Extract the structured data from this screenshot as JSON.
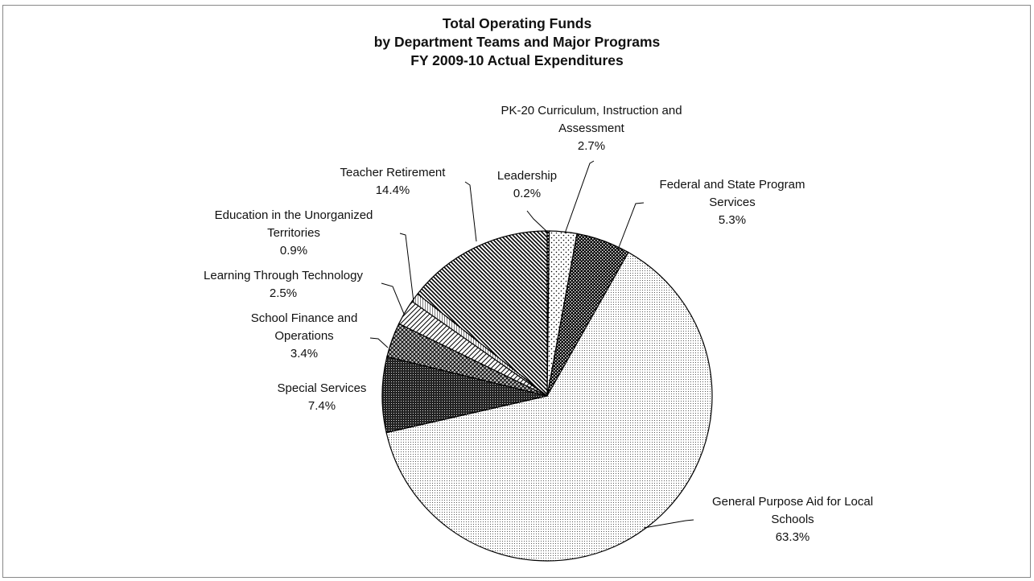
{
  "chart_data": {
    "type": "pie",
    "title": [
      "Total Operating Funds",
      "by Department Teams and Major Programs",
      "FY 2009-10 Actual Expenditures"
    ],
    "categories": [
      "Leadership",
      "PK-20 Curriculum, Instruction and Assessment",
      "Federal and State Program Services",
      "General Purpose Aid for Local Schools",
      "Special Services",
      "School Finance and Operations",
      "Learning Through Technology",
      "Education in the Unorganized Territories",
      "Teacher Retirement"
    ],
    "values": [
      0.2,
      2.7,
      5.3,
      63.3,
      7.4,
      3.4,
      2.5,
      0.9,
      14.4
    ],
    "value_labels": [
      "0.2%",
      "2.7%",
      "5.3%",
      "63.3%",
      "7.4%",
      "3.4%",
      "2.5%",
      "0.9%",
      "14.4%"
    ]
  }
}
